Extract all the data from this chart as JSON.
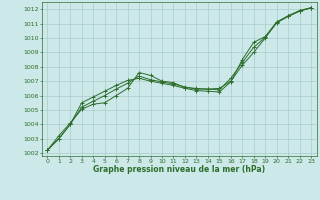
{
  "xlabel": "Graphe pression niveau de la mer (hPa)",
  "bg_color": "#cce8e8",
  "grid_color": "#aacccc",
  "line_color": "#2d6e2d",
  "xlim": [
    -0.5,
    23.5
  ],
  "ylim": [
    1001.8,
    1012.5
  ],
  "yticks": [
    1002,
    1003,
    1004,
    1005,
    1006,
    1007,
    1008,
    1009,
    1010,
    1011,
    1012
  ],
  "xticks": [
    0,
    1,
    2,
    3,
    4,
    5,
    6,
    7,
    8,
    9,
    10,
    11,
    12,
    13,
    14,
    15,
    16,
    17,
    18,
    19,
    20,
    21,
    22,
    23
  ],
  "line1_x": [
    0,
    1,
    2,
    3,
    4,
    5,
    6,
    7,
    8,
    9,
    10,
    11,
    12,
    13,
    14,
    15,
    16,
    17,
    18,
    19,
    20,
    21,
    22,
    23
  ],
  "line1_y": [
    1002.2,
    1003.2,
    1004.1,
    1005.05,
    1005.4,
    1005.5,
    1006.0,
    1006.5,
    1007.6,
    1007.4,
    1007.0,
    1006.9,
    1006.55,
    1006.5,
    1006.45,
    1006.5,
    1007.0,
    1008.1,
    1009.0,
    1010.0,
    1011.05,
    1011.5,
    1011.85,
    1012.1
  ],
  "line2_x": [
    0,
    1,
    2,
    3,
    4,
    5,
    6,
    7,
    8,
    9,
    10,
    11,
    12,
    13,
    14,
    15,
    16,
    17,
    18,
    19,
    20,
    21,
    22,
    23
  ],
  "line2_y": [
    1002.2,
    1003.0,
    1004.0,
    1005.2,
    1005.6,
    1006.0,
    1006.45,
    1006.85,
    1007.35,
    1007.1,
    1006.95,
    1006.8,
    1006.6,
    1006.45,
    1006.45,
    1006.4,
    1007.2,
    1008.3,
    1009.35,
    1010.05,
    1011.1,
    1011.55,
    1011.9,
    1012.1
  ],
  "line3_x": [
    0,
    1,
    2,
    3,
    4,
    5,
    6,
    7,
    8,
    9,
    10,
    11,
    12,
    13,
    14,
    15,
    16,
    17,
    18,
    19,
    20,
    21,
    22,
    23
  ],
  "line3_y": [
    1002.2,
    1003.0,
    1004.0,
    1005.5,
    1005.9,
    1006.3,
    1006.7,
    1007.05,
    1007.2,
    1007.0,
    1006.85,
    1006.7,
    1006.5,
    1006.35,
    1006.3,
    1006.25,
    1006.95,
    1008.5,
    1009.7,
    1010.1,
    1011.1,
    1011.5,
    1011.9,
    1012.1
  ]
}
